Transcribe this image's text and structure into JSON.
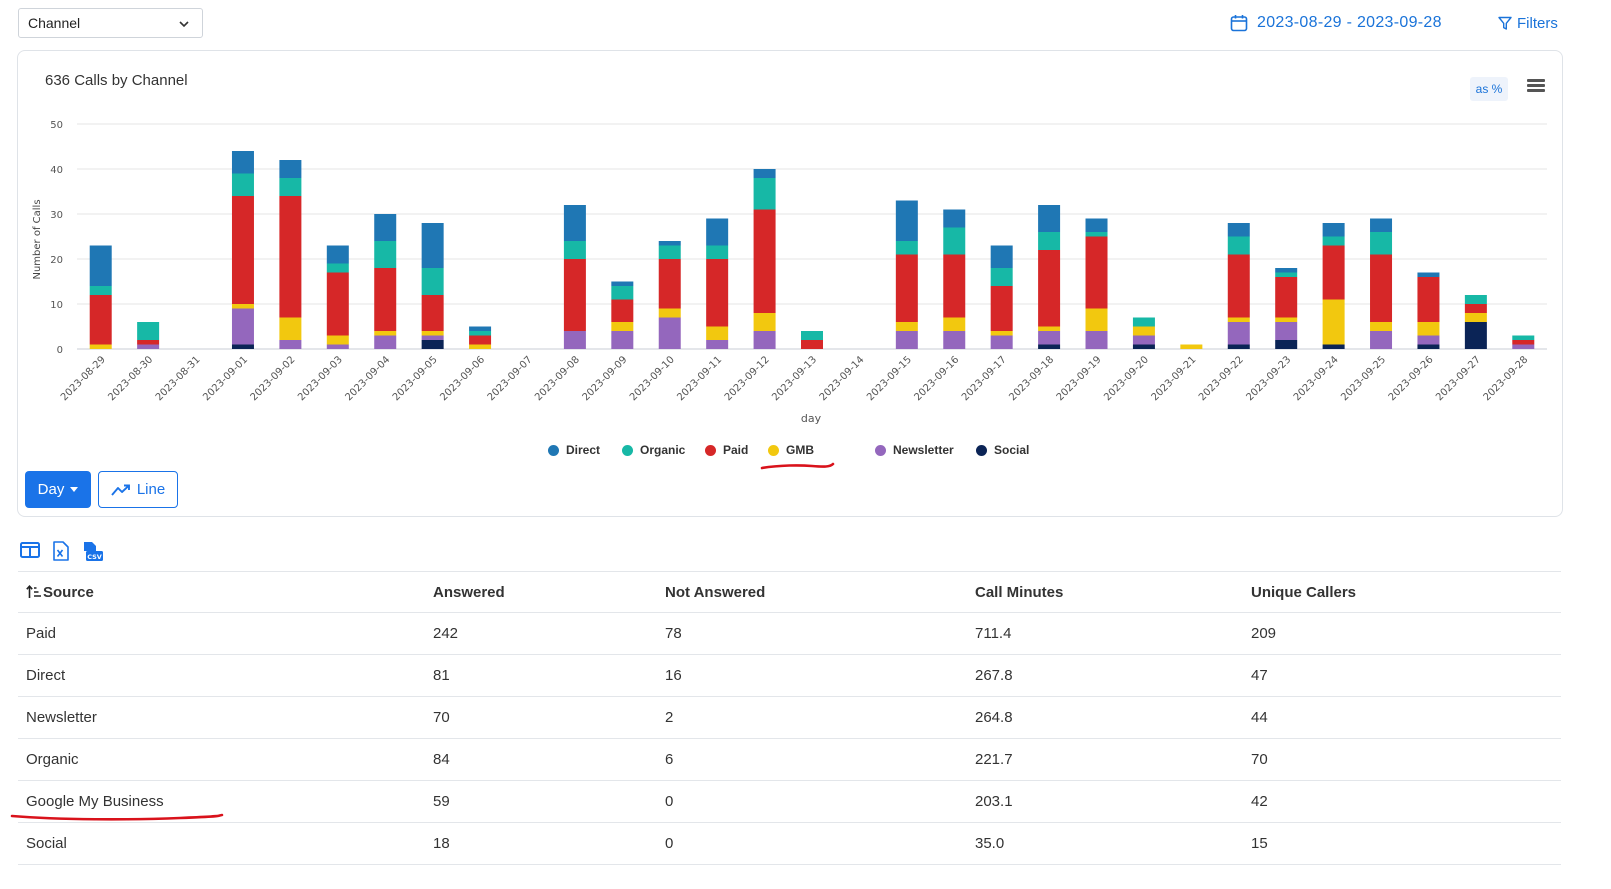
{
  "toolbar": {
    "channel_select": "Channel",
    "date_range": "2023-08-29 - 2023-09-28",
    "filters_label": "Filters"
  },
  "chart_card": {
    "as_percent_label": "as %",
    "day_button": "Day",
    "line_button": "Line"
  },
  "colors": {
    "Direct": "#1f77b4",
    "Organic": "#17b8a6",
    "Paid": "#d62728",
    "GMB": "#f2c80f",
    "Newsletter": "#9467bd",
    "Social": "#0b2456",
    "accent": "#1a73e8",
    "annotation": "#d9121b"
  },
  "chart_data": {
    "type": "bar",
    "stacked": true,
    "title": "636 Calls by Channel",
    "xlabel": "day",
    "ylabel": "Number of Calls",
    "ylim": [
      0,
      50
    ],
    "yticks": [
      0,
      10,
      20,
      30,
      40,
      50
    ],
    "grid": true,
    "legend_position": "bottom",
    "categories": [
      "2023-08-29",
      "2023-08-30",
      "2023-08-31",
      "2023-09-01",
      "2023-09-02",
      "2023-09-03",
      "2023-09-04",
      "2023-09-05",
      "2023-09-06",
      "2023-09-07",
      "2023-09-08",
      "2023-09-09",
      "2023-09-10",
      "2023-09-11",
      "2023-09-12",
      "2023-09-13",
      "2023-09-14",
      "2023-09-15",
      "2023-09-16",
      "2023-09-17",
      "2023-09-18",
      "2023-09-19",
      "2023-09-20",
      "2023-09-21",
      "2023-09-22",
      "2023-09-23",
      "2023-09-24",
      "2023-09-25",
      "2023-09-26",
      "2023-09-27",
      "2023-09-28"
    ],
    "series": [
      {
        "name": "Social",
        "values": [
          0,
          0,
          0,
          1,
          0,
          0,
          0,
          2,
          0,
          0,
          0,
          0,
          0,
          0,
          0,
          0,
          0,
          0,
          0,
          0,
          1,
          0,
          1,
          0,
          1,
          2,
          1,
          0,
          1,
          6,
          0
        ]
      },
      {
        "name": "Newsletter",
        "values": [
          0,
          1,
          0,
          8,
          2,
          1,
          3,
          1,
          0,
          0,
          4,
          4,
          7,
          2,
          4,
          0,
          0,
          4,
          4,
          3,
          3,
          4,
          2,
          0,
          5,
          4,
          0,
          4,
          2,
          0,
          1
        ]
      },
      {
        "name": "GMB",
        "values": [
          1,
          0,
          0,
          1,
          5,
          2,
          1,
          1,
          1,
          0,
          0,
          2,
          2,
          3,
          4,
          0,
          0,
          2,
          3,
          1,
          1,
          5,
          2,
          1,
          1,
          1,
          10,
          2,
          3,
          2,
          0
        ]
      },
      {
        "name": "Paid",
        "values": [
          11,
          1,
          0,
          24,
          27,
          14,
          14,
          8,
          2,
          0,
          16,
          5,
          11,
          15,
          23,
          2,
          0,
          15,
          14,
          10,
          17,
          16,
          0,
          0,
          14,
          9,
          12,
          15,
          10,
          2,
          1
        ]
      },
      {
        "name": "Organic",
        "values": [
          2,
          4,
          0,
          5,
          4,
          2,
          6,
          6,
          1,
          0,
          4,
          3,
          3,
          3,
          7,
          2,
          0,
          3,
          6,
          4,
          4,
          1,
          2,
          0,
          4,
          1,
          2,
          5,
          0,
          2,
          1
        ]
      },
      {
        "name": "Direct",
        "values": [
          9,
          0,
          0,
          5,
          4,
          4,
          6,
          10,
          1,
          0,
          8,
          1,
          1,
          6,
          2,
          0,
          0,
          9,
          4,
          5,
          6,
          3,
          0,
          0,
          3,
          1,
          3,
          3,
          1,
          0,
          0
        ]
      }
    ],
    "legend": [
      "Direct",
      "Organic",
      "Paid",
      "GMB",
      "Newsletter",
      "Social"
    ]
  },
  "table": {
    "headers": [
      "Source",
      "Answered",
      "Not Answered",
      "Call Minutes",
      "Unique Callers"
    ],
    "rows": [
      [
        "Paid",
        "242",
        "78",
        "711.4",
        "209"
      ],
      [
        "Direct",
        "81",
        "16",
        "267.8",
        "47"
      ],
      [
        "Newsletter",
        "70",
        "2",
        "264.8",
        "44"
      ],
      [
        "Organic",
        "84",
        "6",
        "221.7",
        "70"
      ],
      [
        "Google My Business",
        "59",
        "0",
        "203.1",
        "42"
      ],
      [
        "Social",
        "18",
        "0",
        "35.0",
        "15"
      ]
    ]
  },
  "icons": {
    "date_icon": "calendar-icon",
    "filters_icon": "funnel-icon",
    "menu_icon": "hamburger-menu-icon",
    "line_icon": "trend-line-icon",
    "tools": [
      "columns-icon",
      "excel-export-icon",
      "csv-export-icon"
    ],
    "sort_icon": "sort-ascending-icon"
  }
}
